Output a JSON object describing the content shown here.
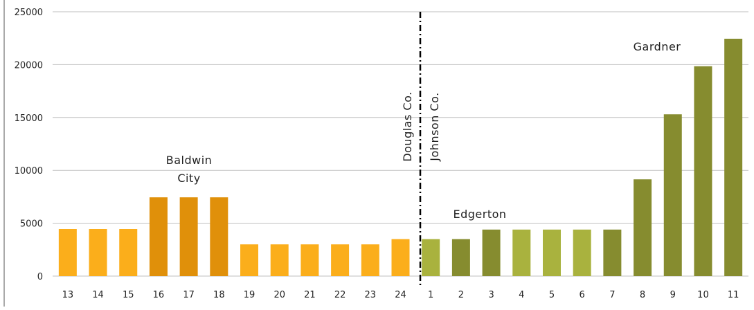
{
  "chart_data": {
    "type": "bar",
    "categories": [
      "13",
      "14",
      "15",
      "16",
      "17",
      "18",
      "19",
      "20",
      "21",
      "22",
      "23",
      "24",
      "1",
      "2",
      "3",
      "4",
      "5",
      "6",
      "7",
      "8",
      "9",
      "10",
      "11"
    ],
    "values": [
      4450,
      4450,
      4450,
      7450,
      7450,
      7450,
      3000,
      3000,
      3000,
      3000,
      3000,
      3500,
      3500,
      3500,
      4400,
      4400,
      4400,
      4400,
      4400,
      9150,
      15300,
      19850,
      22450
    ],
    "colors": [
      "#fbae1b",
      "#fbae1b",
      "#fbae1b",
      "#e0900a",
      "#e0900a",
      "#e0900a",
      "#fbae1b",
      "#fbae1b",
      "#fbae1b",
      "#fbae1b",
      "#fbae1b",
      "#fbae1b",
      "#a9b23e",
      "#868c2f",
      "#868c2f",
      "#a9b23e",
      "#a9b23e",
      "#a9b23e",
      "#868c2f",
      "#868c2f",
      "#868c2f",
      "#868c2f",
      "#868c2f"
    ],
    "ylim": [
      0,
      25000
    ],
    "yticks": [
      "0",
      "5000",
      "10000",
      "15000",
      "20000",
      "25000"
    ],
    "grid": true,
    "annotations": {
      "baldwin_line1": "Baldwin",
      "baldwin_line2": "City",
      "edgerton": "Edgerton",
      "gardner": "Gardner",
      "douglas": "Douglas Co.",
      "johnson": "Johnson Co."
    },
    "divider_after_category": "24"
  }
}
